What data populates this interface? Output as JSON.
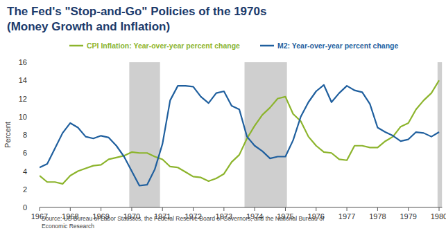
{
  "chart_data": {
    "type": "line",
    "title": "The Fed's \"Stop-and-Go\" Policies of the 1970s",
    "subtitle": "(Money Growth and Inflation)",
    "y_label": "Percent",
    "source": "Source: US Bureau of Labor Statistics, the Federal Reserve Board of Governors, and the National Bureau of Economic Research",
    "x": [
      1967,
      1967.25,
      1967.5,
      1967.75,
      1968,
      1968.25,
      1968.5,
      1968.75,
      1969,
      1969.25,
      1969.5,
      1969.75,
      1970,
      1970.25,
      1970.5,
      1970.75,
      1971,
      1971.25,
      1971.5,
      1971.75,
      1972,
      1972.25,
      1972.5,
      1972.75,
      1973,
      1973.25,
      1973.5,
      1973.75,
      1974,
      1974.25,
      1974.5,
      1974.75,
      1975,
      1975.25,
      1975.5,
      1975.75,
      1976,
      1976.25,
      1976.5,
      1976.75,
      1977,
      1977.25,
      1977.5,
      1977.75,
      1978,
      1978.25,
      1978.5,
      1978.75,
      1979,
      1979.25,
      1979.5,
      1979.75,
      1980
    ],
    "series": [
      {
        "name": "CPI Inflation: Year-over-year percent change",
        "color": "#8cb42c",
        "values": [
          3.5,
          2.8,
          2.8,
          2.6,
          3.5,
          4.0,
          4.3,
          4.6,
          4.7,
          5.3,
          5.5,
          5.7,
          6.1,
          6.0,
          6.0,
          5.6,
          5.3,
          4.5,
          4.4,
          3.9,
          3.4,
          3.3,
          2.9,
          3.2,
          3.7,
          5.0,
          5.8,
          7.6,
          9.0,
          10.2,
          11.0,
          12.0,
          12.2,
          10.3,
          9.5,
          7.8,
          6.8,
          6.1,
          6.0,
          5.3,
          5.2,
          6.8,
          6.8,
          6.6,
          6.6,
          7.3,
          7.8,
          8.9,
          9.3,
          10.8,
          11.8,
          12.6,
          14.0
        ]
      },
      {
        "name": "M2: Year-over-year percent change",
        "color": "#1f5f9e",
        "values": [
          4.4,
          4.8,
          6.5,
          8.2,
          9.3,
          8.8,
          7.8,
          7.6,
          7.9,
          7.7,
          6.8,
          5.6,
          4.0,
          2.4,
          2.5,
          4.2,
          7.0,
          11.8,
          13.4,
          13.4,
          13.3,
          12.2,
          11.5,
          12.6,
          12.8,
          11.2,
          10.8,
          7.8,
          6.8,
          6.2,
          5.4,
          5.6,
          5.6,
          7.4,
          10.0,
          11.6,
          12.8,
          13.5,
          11.6,
          12.6,
          13.4,
          12.9,
          12.7,
          11.4,
          8.8,
          8.3,
          7.9,
          7.3,
          7.5,
          8.3,
          8.2,
          7.8,
          8.3
        ]
      }
    ],
    "recessions": [
      {
        "start": 1969.92,
        "end": 1970.92
      },
      {
        "start": 1973.67,
        "end": 1975.05
      },
      {
        "start": 1979.95,
        "end": 1980.1
      }
    ],
    "xlim": [
      1967,
      1980.1
    ],
    "xticks": [
      1967,
      1968,
      1969,
      1970,
      1971,
      1972,
      1973,
      1974,
      1975,
      1976,
      1977,
      1978,
      1979,
      1980
    ],
    "ylim": [
      0,
      16
    ],
    "yticks": [
      0,
      2,
      4,
      6,
      8,
      10,
      12,
      14,
      16
    ],
    "grid": false,
    "legend": "top",
    "marker": "none",
    "line_style": "solid"
  }
}
